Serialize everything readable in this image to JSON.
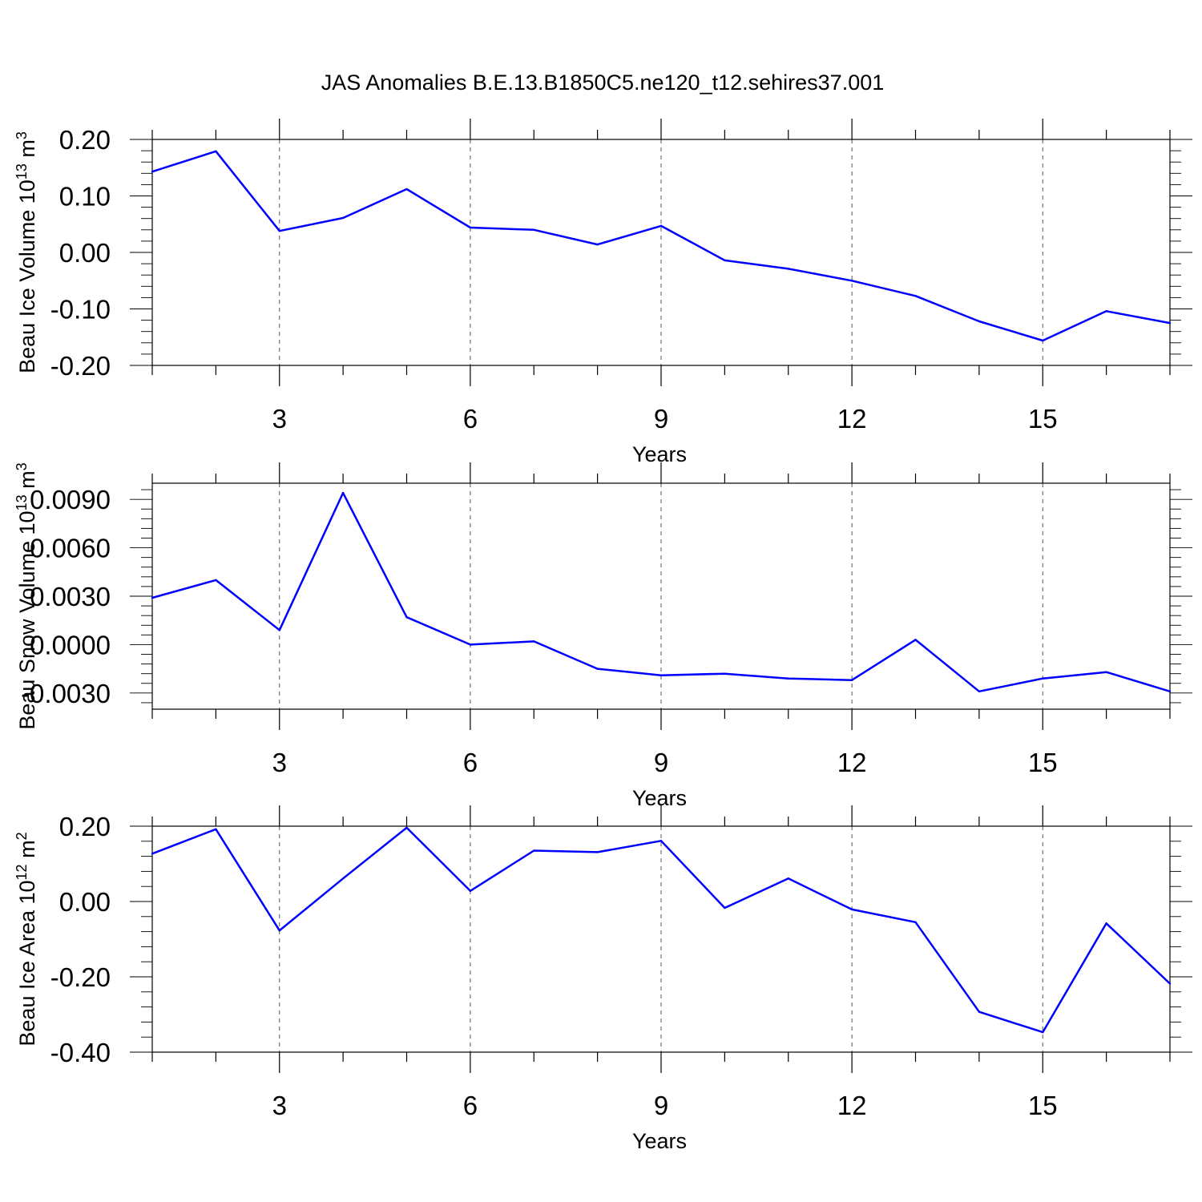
{
  "title": "JAS Anomalies B.E.13.B1850C5.ne120_t12.sehires37.001",
  "series_color": "#0000ff",
  "chart_data": [
    {
      "type": "line",
      "ylabel": "Beau Ice Volume 10",
      "ylabel_sup": "13",
      "ylabel_unit": " m",
      "ylabel_unit_sup": "3",
      "xlabel": "Years",
      "xlim": [
        1,
        17
      ],
      "ylim": [
        -0.2,
        0.2
      ],
      "xticks": [
        3,
        6,
        9,
        12,
        15
      ],
      "xtick_labels": [
        "3",
        "6",
        "9",
        "12",
        "15"
      ],
      "yticks": [
        0.2,
        0.1,
        0.0,
        -0.1,
        -0.2
      ],
      "ytick_labels": [
        "0.20",
        "0.10",
        "0.00",
        "-0.10",
        "-0.20"
      ],
      "grid_x": true,
      "x": [
        1,
        2,
        3,
        4,
        5,
        6,
        7,
        8,
        9,
        10,
        11,
        12,
        13,
        14,
        15,
        16,
        17
      ],
      "y": [
        0.143,
        0.179,
        0.038,
        0.061,
        0.112,
        0.044,
        0.04,
        0.014,
        0.047,
        -0.014,
        -0.029,
        -0.05,
        -0.077,
        -0.122,
        -0.156,
        -0.104,
        -0.125
      ]
    },
    {
      "type": "line",
      "ylabel": "Beau Snow Volume 10",
      "ylabel_sup": "13",
      "ylabel_unit": " m",
      "ylabel_unit_sup": "3",
      "xlabel": "Years",
      "xlim": [
        1,
        17
      ],
      "ylim": [
        -0.004,
        0.01
      ],
      "xticks": [
        3,
        6,
        9,
        12,
        15
      ],
      "xtick_labels": [
        "3",
        "6",
        "9",
        "12",
        "15"
      ],
      "yticks": [
        0.009,
        0.006,
        0.003,
        0.0,
        -0.003
      ],
      "ytick_labels": [
        "0.0090",
        "0.0060",
        "0.0030",
        "0.0000",
        "-0.0030"
      ],
      "grid_x": true,
      "x": [
        1,
        2,
        3,
        4,
        5,
        6,
        7,
        8,
        9,
        10,
        11,
        12,
        13,
        14,
        15,
        16,
        17
      ],
      "y": [
        0.0029,
        0.004,
        0.0009,
        0.0094,
        0.0017,
        0.0,
        0.0002,
        -0.0015,
        -0.0019,
        -0.0018,
        -0.0021,
        -0.0022,
        0.0003,
        -0.0029,
        -0.0021,
        -0.0017,
        -0.0029
      ]
    },
    {
      "type": "line",
      "ylabel": "Beau Ice Area 10",
      "ylabel_sup": "12",
      "ylabel_unit": " m",
      "ylabel_unit_sup": "2",
      "xlabel": "Years",
      "xlim": [
        1,
        17
      ],
      "ylim": [
        -0.4,
        0.2
      ],
      "xticks": [
        3,
        6,
        9,
        12,
        15
      ],
      "xtick_labels": [
        "3",
        "6",
        "9",
        "12",
        "15"
      ],
      "yticks": [
        0.2,
        0.0,
        -0.2,
        -0.4
      ],
      "ytick_labels": [
        "0.20",
        "0.00",
        "-0.20",
        "-0.40"
      ],
      "grid_x": true,
      "x": [
        1,
        2,
        3,
        4,
        5,
        6,
        7,
        8,
        9,
        10,
        11,
        12,
        13,
        14,
        15,
        16,
        17
      ],
      "y": [
        0.127,
        0.192,
        -0.077,
        0.061,
        0.196,
        0.028,
        0.135,
        0.131,
        0.161,
        -0.017,
        0.061,
        -0.021,
        -0.055,
        -0.293,
        -0.347,
        -0.058,
        -0.218
      ]
    }
  ]
}
